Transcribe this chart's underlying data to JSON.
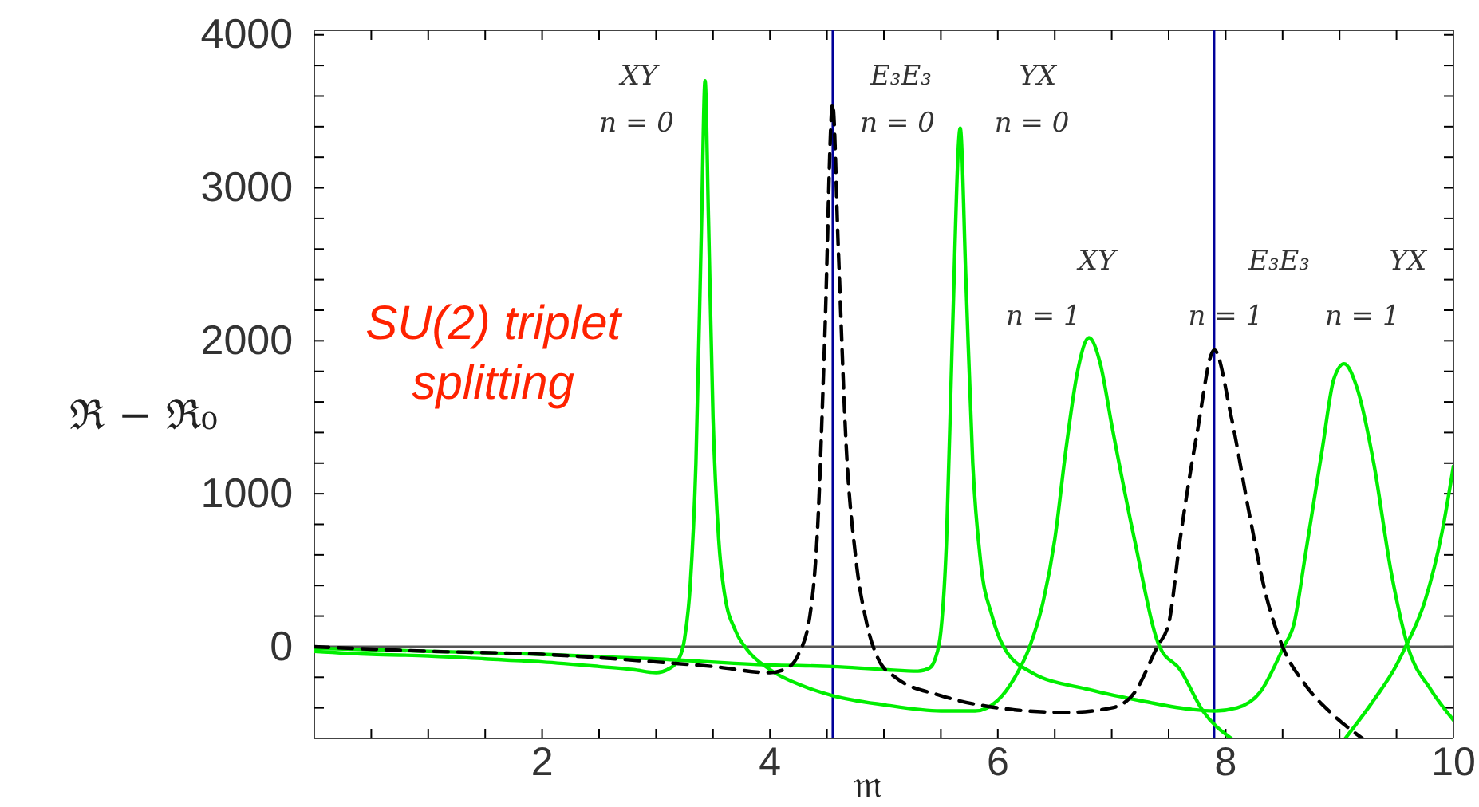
{
  "chart_data": {
    "type": "line",
    "xlabel": "𝔪",
    "ylabel": "ℜ − ℜ₀",
    "xlim": [
      0,
      10
    ],
    "ylim": [
      -600,
      4030
    ],
    "xticks": [
      {
        "value": 0.5,
        "label": null
      },
      {
        "value": 1,
        "label": null
      },
      {
        "value": 1.5,
        "label": null
      },
      2,
      {
        "value": 2.5,
        "label": null
      },
      {
        "value": 3,
        "label": null
      },
      {
        "value": 3.5,
        "label": null
      },
      4,
      {
        "value": 4.5,
        "label": null
      },
      {
        "value": 5,
        "label": null
      },
      {
        "value": 5.5,
        "label": null
      },
      6,
      {
        "value": 6.5,
        "label": null
      },
      {
        "value": 7,
        "label": null
      },
      {
        "value": 7.5,
        "label": null
      },
      8,
      {
        "value": 8.5,
        "label": null
      },
      {
        "value": 9,
        "label": null
      },
      {
        "value": 9.5,
        "label": null
      },
      10
    ],
    "yticks": [
      {
        "value": -400,
        "label": null
      },
      {
        "value": -200,
        "label": null
      },
      0,
      {
        "value": 200,
        "label": null
      },
      {
        "value": 400,
        "label": null
      },
      {
        "value": 600,
        "label": null
      },
      {
        "value": 800,
        "label": null
      },
      1000,
      {
        "value": 1200,
        "label": null
      },
      {
        "value": 1400,
        "label": null
      },
      {
        "value": 1600,
        "label": null
      },
      {
        "value": 1800,
        "label": null
      },
      2000,
      {
        "value": 2200,
        "label": null
      },
      {
        "value": 2400,
        "label": null
      },
      {
        "value": 2600,
        "label": null
      },
      {
        "value": 2800,
        "label": null
      },
      3000,
      {
        "value": 3200,
        "label": null
      },
      {
        "value": 3400,
        "label": null
      },
      {
        "value": 3600,
        "label": null
      },
      {
        "value": 3800,
        "label": null
      },
      4000
    ],
    "grid": false,
    "line_style": "solid",
    "marker": "none",
    "series": [
      {
        "color": "#00ee00",
        "x": [
          0,
          0.5,
          1,
          1.5,
          2,
          2.5,
          2.8,
          3.0,
          3.1,
          3.2,
          3.25,
          3.3,
          3.35,
          3.4,
          3.43,
          3.46,
          3.5,
          3.55,
          3.6,
          3.7,
          3.8,
          4.0,
          4.3,
          4.55,
          5.0,
          5.5,
          5.8,
          6.0,
          6.15,
          6.28,
          6.4,
          6.5,
          6.6,
          6.7,
          6.8,
          6.9,
          7.0,
          7.2,
          7.42,
          7.6,
          7.8,
          8.05
        ],
        "values": [
          -30,
          -50,
          -60,
          -80,
          -100,
          -130,
          -150,
          -170,
          -150,
          -80,
          50,
          400,
          1200,
          2800,
          3700,
          2800,
          1500,
          700,
          350,
          100,
          -20,
          -150,
          -260,
          -320,
          -380,
          -420,
          -420,
          -350,
          -200,
          0,
          300,
          700,
          1300,
          1800,
          2020,
          1850,
          1450,
          700,
          0,
          -150,
          -420,
          -600
        ]
      },
      {
        "color": "#00ee00",
        "x": [
          0,
          1,
          2,
          3,
          4,
          4.55,
          5.0,
          5.3,
          5.4,
          5.45,
          5.5,
          5.55,
          5.6,
          5.67,
          5.72,
          5.78,
          5.85,
          5.95,
          6.05,
          6.3,
          6.8,
          7.3,
          7.7,
          7.9,
          8.1,
          8.3,
          8.51,
          8.6,
          8.7,
          8.85,
          8.95,
          9.04,
          9.15,
          9.3,
          9.45,
          9.6,
          9.8,
          10
        ],
        "values": [
          -10,
          -30,
          -50,
          -80,
          -120,
          -130,
          -150,
          -160,
          -140,
          -80,
          100,
          700,
          2000,
          3390,
          2400,
          1200,
          550,
          200,
          0,
          -170,
          -280,
          -360,
          -410,
          -420,
          -400,
          -300,
          0,
          150,
          600,
          1300,
          1750,
          1850,
          1700,
          1200,
          500,
          0,
          -280,
          -480
        ]
      },
      {
        "color": "#00ee00",
        "x": [
          9.05,
          9.3,
          9.5,
          9.58,
          9.75,
          9.9,
          10
        ],
        "values": [
          -600,
          -350,
          -120,
          0,
          300,
          750,
          1180
        ]
      },
      {
        "color": "#000000",
        "line_style": "dashed",
        "x": [
          0,
          1,
          2,
          3,
          3.5,
          4.0,
          4.15,
          4.25,
          4.35,
          4.42,
          4.48,
          4.55,
          4.6,
          4.67,
          4.75,
          4.85,
          4.95,
          5.1,
          5.5,
          6.0,
          6.6,
          7.0,
          7.2,
          7.4,
          7.5,
          7.6,
          7.75,
          7.9,
          8.05,
          8.2,
          8.35,
          8.5,
          8.7,
          8.95,
          9.2
        ],
        "values": [
          0,
          -30,
          -50,
          -100,
          -130,
          -170,
          -140,
          -50,
          200,
          800,
          2000,
          3550,
          2600,
          1300,
          600,
          150,
          -80,
          -200,
          -320,
          -400,
          -430,
          -400,
          -300,
          0,
          150,
          700,
          1400,
          1940,
          1500,
          900,
          350,
          0,
          -250,
          -450,
          -600
        ]
      }
    ],
    "ref_lines": [
      {
        "axis": "x",
        "value": 4.55,
        "color": "#000099"
      },
      {
        "axis": "x",
        "value": 7.9,
        "color": "#000099"
      },
      {
        "axis": "y",
        "value": 0,
        "color": "#555555"
      }
    ],
    "annotations": [
      "SU(2) triplet splitting",
      "XY",
      "n = 0",
      "E₃E₃",
      "n = 0",
      "YX",
      "n = 0",
      "XY",
      "n = 1",
      "E₃E₃",
      "n = 1",
      "YX",
      "n = 1"
    ]
  }
}
